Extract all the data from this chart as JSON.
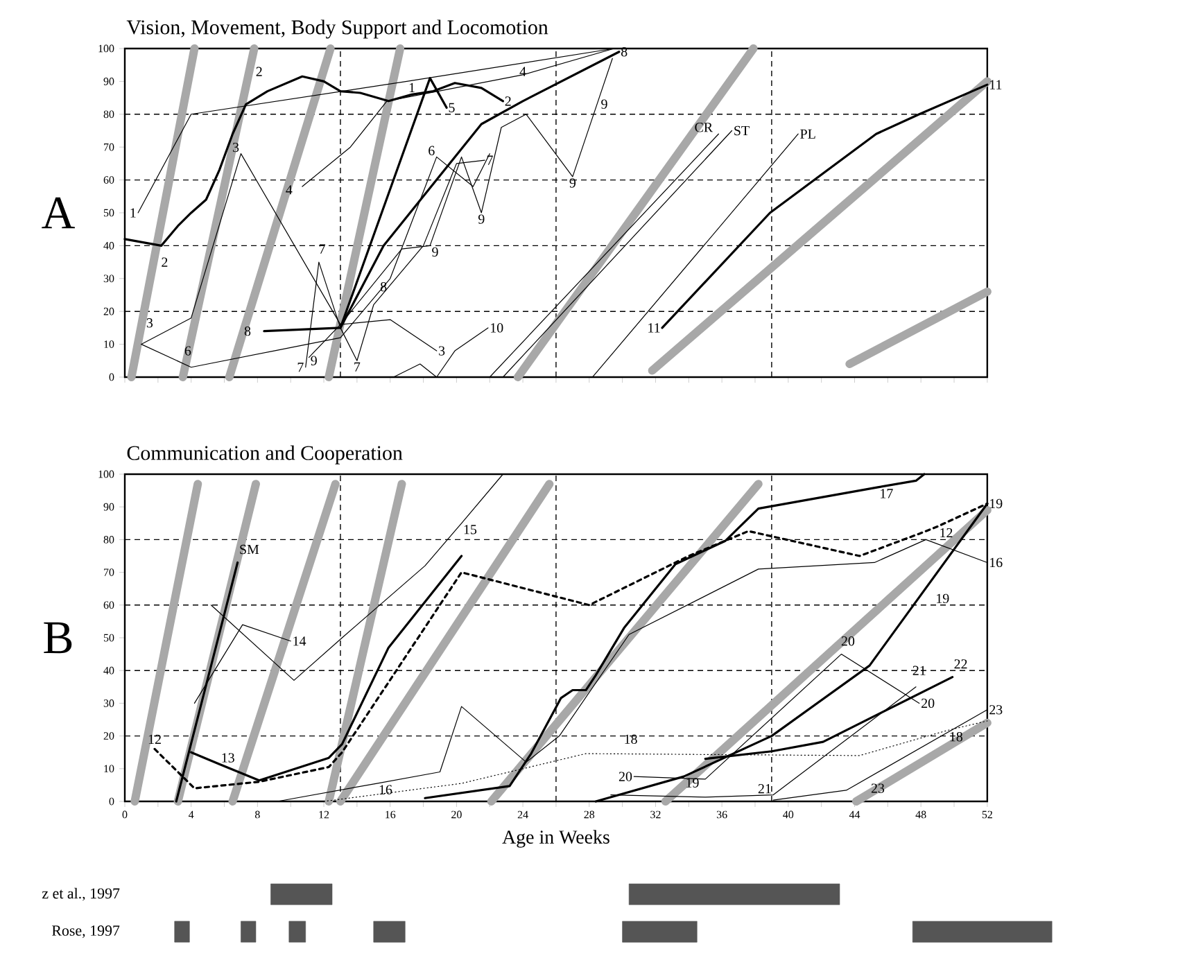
{
  "chart_data": [
    {
      "type": "line",
      "title": "Vision, Movement, Body Support and Locomotion",
      "xlim": [
        0,
        52
      ],
      "ylim": [
        0,
        100
      ],
      "tick_labels": "y",
      "xticks": [
        0,
        2,
        4,
        6,
        8,
        10,
        12,
        14,
        16,
        18,
        20,
        22,
        24,
        26,
        28,
        30,
        32,
        34,
        36,
        38,
        40,
        42,
        44,
        46,
        48,
        50,
        52
      ],
      "yticks": [
        0,
        10,
        20,
        30,
        40,
        50,
        60,
        70,
        80,
        90,
        100
      ],
      "ref_lines": [
        {
          "axis": "y",
          "value": 20,
          "line_style": "dashed"
        },
        {
          "axis": "y",
          "value": 40,
          "line_style": "dashed"
        },
        {
          "axis": "y",
          "value": 60,
          "line_style": "dashed"
        },
        {
          "axis": "y",
          "value": 80,
          "line_style": "dashed"
        },
        {
          "axis": "x",
          "value": 13,
          "line_style": "dashed"
        },
        {
          "axis": "x",
          "value": 26,
          "line_style": "dashed"
        },
        {
          "axis": "x",
          "value": 39,
          "line_style": "dashed"
        }
      ],
      "series": [
        {
          "color": "#a8a8a8",
          "x": [
            0.4,
            4.2
          ],
          "values": [
            0,
            100
          ]
        },
        {
          "color": "#a8a8a8",
          "x": [
            3.5,
            7.8
          ],
          "values": [
            0,
            100
          ]
        },
        {
          "color": "#a8a8a8",
          "x": [
            6.3,
            12.4
          ],
          "values": [
            0,
            100
          ]
        },
        {
          "color": "#a8a8a8",
          "x": [
            12.3,
            16.6
          ],
          "values": [
            0,
            100
          ]
        },
        {
          "color": "#a8a8a8",
          "x": [
            23.7,
            37.9
          ],
          "values": [
            0,
            100
          ]
        },
        {
          "color": "#a8a8a8",
          "x": [
            31.8,
            52
          ],
          "values": [
            2,
            90
          ]
        },
        {
          "color": "#a8a8a8",
          "x": [
            43.7,
            52
          ],
          "values": [
            4,
            26
          ]
        },
        {
          "color": "#000000",
          "x": [
            0.8,
            4,
            17,
            29.5
          ],
          "values": [
            50,
            80,
            90,
            100
          ]
        },
        {
          "color": "#000000",
          "x": [
            0,
            2.2,
            3.2,
            4,
            4.9,
            5.7,
            6.5,
            7.3,
            8.6,
            10.7,
            12,
            13,
            14.2,
            15.9,
            17.3,
            18.6,
            19.9,
            21.5,
            22.8
          ],
          "values": [
            42,
            40,
            46,
            50,
            54,
            63,
            74,
            83,
            87,
            91.5,
            90,
            87,
            86.5,
            84,
            86,
            87,
            89.5,
            88,
            84
          ]
        },
        {
          "color": "#000000",
          "x": [
            1,
            4,
            7,
            13,
            16,
            18.8
          ],
          "values": [
            10,
            18,
            68,
            16,
            17.5,
            8
          ]
        },
        {
          "color": "#000000",
          "x": [
            10.7,
            13.6,
            15.8,
            24,
            29.5
          ],
          "values": [
            58,
            70,
            84,
            92,
            100
          ]
        },
        {
          "color": "#000000",
          "x": [
            13,
            18.4,
            19.4
          ],
          "values": [
            15,
            91,
            82
          ]
        },
        {
          "color": "#000000",
          "x": [
            1,
            4,
            9,
            13,
            16,
            18.8,
            21,
            22
          ],
          "values": [
            10,
            3,
            8,
            12,
            30,
            67,
            58,
            68
          ]
        },
        {
          "color": "#000000",
          "x": [
            10.9,
            11.7,
            13,
            14,
            15,
            18,
            20,
            21.7
          ],
          "values": [
            3,
            35,
            15,
            5,
            22,
            40,
            65,
            66
          ]
        },
        {
          "color": "#000000",
          "x": [
            8.4,
            13,
            15.6,
            21.5,
            24,
            29.8
          ],
          "values": [
            14,
            15,
            40,
            77,
            84,
            99
          ]
        },
        {
          "color": "#000000",
          "x": [
            11.1,
            13,
            16.7,
            18.4,
            20.3,
            21.5,
            22.7,
            24.2,
            27,
            28.6,
            29.4
          ],
          "values": [
            6,
            16,
            39,
            40,
            67,
            50,
            76,
            80,
            61,
            85,
            97
          ]
        },
        {
          "color": "#000000",
          "x": [
            16.2,
            17.8,
            18.8,
            19.9,
            21.9
          ],
          "values": [
            0,
            4,
            0,
            8,
            15
          ]
        },
        {
          "color": "#000000",
          "x": [
            22,
            35.8
          ],
          "values": [
            0,
            74
          ]
        },
        {
          "color": "#000000",
          "x": [
            22.8,
            36.6
          ],
          "values": [
            0,
            75
          ]
        },
        {
          "color": "#000000",
          "x": [
            28.2,
            40.6
          ],
          "values": [
            0,
            74
          ]
        },
        {
          "color": "#000000",
          "x": [
            32.4,
            38.9,
            45.3,
            47.9,
            52
          ],
          "values": [
            15,
            50,
            74,
            80,
            89
          ]
        }
      ],
      "annotations": [
        "A",
        {
          "text": "1",
          "x": 0.8,
          "y": 50
        },
        {
          "text": "2",
          "x": 2.4,
          "y": 35
        },
        {
          "text": "3",
          "x": 1.5,
          "y": 16.5
        },
        {
          "text": "6",
          "x": 3.8,
          "y": 8
        },
        {
          "text": "2",
          "x": 8.1,
          "y": 93
        },
        {
          "text": "3",
          "x": 7,
          "y": 68
        },
        {
          "text": "4",
          "x": 9.9,
          "y": 57
        },
        {
          "text": "8",
          "x": 7.4,
          "y": 14
        },
        {
          "text": "7",
          "x": 10.9,
          "y": 3
        },
        {
          "text": "9",
          "x": 11.4,
          "y": 5
        },
        {
          "text": "7",
          "x": 11.9,
          "y": 39
        },
        {
          "text": "7",
          "x": 14,
          "y": 5
        },
        {
          "text": "8",
          "x": 15.6,
          "y": 27.5
        },
        {
          "text": "3",
          "x": 18.8,
          "y": 8
        },
        {
          "text": "1",
          "x": 17,
          "y": 90
        },
        {
          "text": "5",
          "x": 19.4,
          "y": 82
        },
        {
          "text": "6",
          "x": 18.8,
          "y": 67
        },
        {
          "text": "7",
          "x": 21.7,
          "y": 66
        },
        {
          "text": "9",
          "x": 21.5,
          "y": 50
        },
        {
          "text": "9",
          "x": 18.4,
          "y": 40
        },
        {
          "text": "9",
          "x": 27,
          "y": 61
        },
        {
          "text": "2",
          "x": 22.8,
          "y": 84
        },
        {
          "text": "4",
          "x": 24,
          "y": 93
        },
        {
          "text": "10",
          "x": 21.9,
          "y": 15
        },
        {
          "text": "8",
          "x": 29.8,
          "y": 99
        },
        {
          "text": "9",
          "x": 28.6,
          "y": 85
        },
        {
          "text": "CR",
          "x": 34.9,
          "y": 76
        },
        {
          "text": "ST",
          "x": 36.6,
          "y": 75
        },
        {
          "text": "PL",
          "x": 40.6,
          "y": 74
        },
        {
          "text": "11",
          "x": 32.4,
          "y": 15
        },
        {
          "text": "11",
          "x": 52,
          "y": 89
        }
      ]
    },
    {
      "type": "line",
      "title": "Communication and Cooperation",
      "xlabel": "Age in Weeks",
      "xlim": [
        0,
        52
      ],
      "ylim": [
        0,
        100
      ],
      "tick_labels": "y",
      "xticks": [
        0,
        {
          "value": 2,
          "label": null
        },
        4,
        {
          "value": 6,
          "label": null
        },
        8,
        {
          "value": 10,
          "label": null
        },
        12,
        {
          "value": 14,
          "label": null
        },
        16,
        {
          "value": 18,
          "label": null
        },
        20,
        {
          "value": 22,
          "label": null
        },
        24,
        {
          "value": 26,
          "label": null
        },
        28,
        {
          "value": 30,
          "label": null
        },
        32,
        {
          "value": 34,
          "label": null
        },
        36,
        {
          "value": 38,
          "label": null
        },
        40,
        {
          "value": 42,
          "label": null
        },
        44,
        {
          "value": 46,
          "label": null
        },
        48,
        {
          "value": 50,
          "label": null
        },
        52
      ],
      "yticks": [
        0,
        10,
        20,
        30,
        40,
        50,
        60,
        70,
        80,
        90,
        100
      ],
      "ref_lines": [
        {
          "axis": "y",
          "value": 20,
          "line_style": "dashed"
        },
        {
          "axis": "y",
          "value": 40,
          "line_style": "dashed"
        },
        {
          "axis": "y",
          "value": 60,
          "line_style": "dashed"
        },
        {
          "axis": "y",
          "value": 80,
          "line_style": "dashed"
        },
        {
          "axis": "x",
          "value": 13,
          "line_style": "dashed"
        },
        {
          "axis": "x",
          "value": 26,
          "line_style": "dashed"
        },
        {
          "axis": "x",
          "value": 39,
          "line_style": "dashed"
        }
      ],
      "series": [
        {
          "color": "#a8a8a8",
          "x": [
            0.6,
            4.4
          ],
          "values": [
            0,
            97
          ]
        },
        {
          "color": "#a8a8a8",
          "x": [
            3.2,
            7.9
          ],
          "values": [
            0,
            97
          ]
        },
        {
          "color": "#a8a8a8",
          "x": [
            6.5,
            12.7
          ],
          "values": [
            0,
            97
          ]
        },
        {
          "color": "#a8a8a8",
          "x": [
            12.3,
            16.7
          ],
          "values": [
            0,
            97
          ]
        },
        {
          "color": "#a8a8a8",
          "x": [
            13,
            25.6
          ],
          "values": [
            0,
            97
          ]
        },
        {
          "color": "#a8a8a8",
          "x": [
            22.1,
            38.2
          ],
          "values": [
            0,
            97
          ]
        },
        {
          "color": "#a8a8a8",
          "x": [
            32.6,
            52
          ],
          "values": [
            0,
            89
          ]
        },
        {
          "color": "#a8a8a8",
          "x": [
            44.1,
            52
          ],
          "values": [
            0,
            24
          ]
        },
        {
          "color": "#000000",
          "line_style": "dashed",
          "x": [
            1.8,
            4.2,
            8.1,
            12.3,
            13.1,
            20.3,
            28,
            34,
            37.6,
            44.3,
            47.9,
            49,
            52
          ],
          "values": [
            16,
            4,
            6,
            10.5,
            15,
            70,
            60,
            75,
            82.6,
            75,
            81.8,
            84,
            91
          ]
        },
        {
          "color": "#000000",
          "x": [
            4,
            5.7,
            8.1,
            12.3,
            13.1,
            15.9,
            20.3
          ],
          "values": [
            15,
            11.4,
            6.4,
            13.3,
            17.5,
            47,
            75
          ]
        },
        {
          "color": "#000000",
          "x": [
            3.1,
            6.8
          ],
          "values": [
            0,
            73
          ]
        },
        {
          "color": "#000000",
          "x": [
            4.2,
            7.1,
            10
          ],
          "values": [
            30,
            54,
            49
          ]
        },
        {
          "color": "#000000",
          "x": [
            5.2,
            10.2,
            13.1,
            18.1,
            20.3,
            22.8
          ],
          "values": [
            60,
            37,
            50,
            72,
            85,
            100
          ]
        },
        {
          "color": "#000000",
          "x": [
            9.2,
            15.2,
            19,
            20.3,
            24.2,
            26.2,
            30.4,
            38.2,
            45.2,
            48.3,
            52
          ],
          "values": [
            0,
            5.5,
            9,
            29,
            12,
            20,
            51,
            71,
            73,
            80,
            73
          ]
        },
        {
          "color": "#000000",
          "x": [
            18.1,
            23.2,
            24.5,
            26.3,
            27,
            27.8,
            28.4,
            30.1,
            33.2,
            36.2,
            38.2,
            45.4,
            47.7,
            48.2
          ],
          "values": [
            1,
            4.7,
            14.6,
            31.6,
            34,
            34,
            38.6,
            53,
            72.5,
            79.6,
            89.5,
            96,
            98,
            100
          ]
        },
        {
          "color": "#000000",
          "line_style": "dotted",
          "x": [
            12,
            20.3,
            27.8,
            44.3,
            49.6,
            52
          ],
          "values": [
            0,
            5.5,
            14.6,
            14,
            21.7,
            24.6
          ]
        },
        {
          "color": "#000000",
          "x": [
            28.4,
            33.7,
            39,
            44.9,
            52
          ],
          "values": [
            0,
            7.6,
            20,
            41.5,
            91
          ]
        },
        {
          "color": "#000000",
          "x": [
            30.7,
            35,
            43.2,
            47.9
          ],
          "values": [
            7.6,
            6.8,
            45,
            30
          ]
        },
        {
          "color": "#000000",
          "x": [
            29.3,
            35,
            39.1,
            47.7
          ],
          "values": [
            2,
            1.3,
            2,
            35
          ]
        },
        {
          "color": "#000000",
          "x": [
            35,
            39,
            42.1,
            49.9
          ],
          "values": [
            13,
            15.3,
            18.2,
            38
          ]
        },
        {
          "color": "#000000",
          "x": [
            39.1,
            43.5,
            52
          ],
          "values": [
            0.4,
            3.4,
            28
          ]
        }
      ],
      "annotations": [
        "B",
        {
          "text": "12",
          "x": 1.8,
          "y": 19
        },
        {
          "text": "SM",
          "x": 7.5,
          "y": 77
        },
        {
          "text": "13",
          "x": 5.7,
          "y": 11.4
        },
        {
          "text": "14",
          "x": 10,
          "y": 49
        },
        {
          "text": "15",
          "x": 20.3,
          "y": 85
        },
        {
          "text": "16",
          "x": 15.2,
          "y": 5.5
        },
        {
          "text": "17",
          "x": 45.4,
          "y": 96
        },
        {
          "text": "12",
          "x": 49,
          "y": 84
        },
        {
          "text": "19",
          "x": 52,
          "y": 91
        },
        {
          "text": "16",
          "x": 52,
          "y": 73
        },
        {
          "text": "19",
          "x": 49.3,
          "y": 62
        },
        {
          "text": "18",
          "x": 30.5,
          "y": 19
        },
        {
          "text": "20",
          "x": 30.7,
          "y": 7.6
        },
        {
          "text": "19",
          "x": 33.7,
          "y": 7.6
        },
        {
          "text": "20",
          "x": 43.6,
          "y": 49
        },
        {
          "text": "21",
          "x": 47.9,
          "y": 40
        },
        {
          "text": "22",
          "x": 50.4,
          "y": 42
        },
        {
          "text": "20",
          "x": 47.9,
          "y": 30
        },
        {
          "text": "18",
          "x": 49.6,
          "y": 21.7
        },
        {
          "text": "23",
          "x": 52,
          "y": 28
        },
        {
          "text": "21",
          "x": 39.1,
          "y": 2
        },
        {
          "text": "23",
          "x": 45.4,
          "y": 4
        }
      ]
    },
    {
      "type": "bar",
      "orientation": "horizontal",
      "categories": [
        "z et al., 1997",
        "Rose, 1997"
      ],
      "xlim": [
        0,
        56
      ],
      "xticks": [
        0,
        4,
        8,
        12,
        16,
        20,
        24,
        28,
        32,
        36,
        40,
        44,
        48,
        52
      ],
      "series": [
        {
          "color": "#555555",
          "base": [
            8.8,
            3.0
          ],
          "values": [
            3.7,
            0.9
          ]
        },
        {
          "color": "#555555",
          "base": [
            30.4,
            7.0
          ],
          "values": [
            12.7,
            0.9
          ]
        },
        {
          "color": "#555555",
          "base": [
            null,
            9.9
          ],
          "values": [
            null,
            1.0
          ]
        },
        {
          "color": "#555555",
          "base": [
            null,
            15.0
          ],
          "values": [
            null,
            1.9
          ]
        },
        {
          "color": "#555555",
          "base": [
            null,
            30.0
          ],
          "values": [
            null,
            4.5
          ]
        },
        {
          "color": "#555555",
          "base": [
            null,
            47.5
          ],
          "values": [
            null,
            8.4
          ]
        }
      ]
    }
  ]
}
